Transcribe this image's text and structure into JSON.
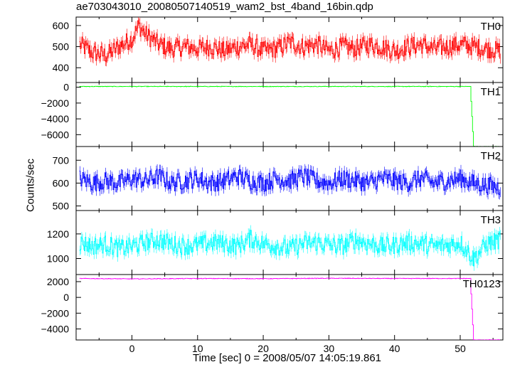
{
  "title": "ae703043010_20080507140519_wam2_bst_4band_16bin.qdp",
  "xlabel": "Time [sec] 0 = 2008/05/07 14:05:19.861",
  "ylabel": "Counts/sec",
  "chart_data": [
    {
      "type": "line",
      "name": "TH0",
      "color": "#ff0000",
      "xlim": [
        -8.5,
        56.5
      ],
      "ylim": [
        330,
        640
      ],
      "yticks": [
        400,
        500,
        600
      ],
      "ytick_labels": [
        "400",
        "500",
        "600"
      ],
      "x": [
        -8,
        -6,
        -4,
        -2,
        0,
        1,
        2,
        4,
        6,
        8,
        10,
        12,
        14,
        16,
        18,
        20,
        22,
        24,
        26,
        28,
        30,
        32,
        34,
        36,
        38,
        40,
        42,
        44,
        46,
        48,
        50,
        52,
        54,
        56
      ],
      "values": [
        510,
        470,
        460,
        500,
        540,
        600,
        560,
        510,
        490,
        500,
        490,
        500,
        480,
        500,
        510,
        480,
        490,
        520,
        500,
        510,
        480,
        500,
        490,
        510,
        500,
        480,
        500,
        510,
        490,
        500,
        510,
        500,
        490,
        480
      ]
    },
    {
      "type": "line",
      "name": "TH1",
      "color": "#00ff00",
      "xlim": [
        -8.5,
        56.5
      ],
      "ylim": [
        -7500,
        600
      ],
      "yticks": [
        -6000,
        -4000,
        -2000,
        0
      ],
      "ytick_labels": [
        "−6000",
        "−4000",
        "−2000",
        "0"
      ],
      "x": [
        -8,
        0,
        10,
        20,
        30,
        40,
        51,
        51.5,
        52,
        52.5
      ],
      "values": [
        100,
        100,
        100,
        100,
        100,
        100,
        100,
        100,
        -7500,
        -7500
      ]
    },
    {
      "type": "line",
      "name": "TH2",
      "color": "#0000ff",
      "xlim": [
        -8.5,
        56.5
      ],
      "ylim": [
        480,
        760
      ],
      "yticks": [
        500,
        600,
        700
      ],
      "ytick_labels": [
        "500",
        "600",
        "700"
      ],
      "x": [
        -8,
        -6,
        -4,
        -2,
        0,
        2,
        4,
        6,
        8,
        10,
        12,
        14,
        16,
        18,
        20,
        22,
        24,
        26,
        28,
        30,
        32,
        34,
        36,
        38,
        40,
        42,
        44,
        46,
        48,
        50,
        52,
        54,
        56
      ],
      "values": [
        620,
        600,
        610,
        600,
        620,
        610,
        630,
        600,
        610,
        620,
        600,
        610,
        630,
        610,
        600,
        620,
        610,
        630,
        610,
        600,
        620,
        610,
        600,
        620,
        610,
        600,
        620,
        600,
        610,
        620,
        600,
        590,
        580
      ]
    },
    {
      "type": "line",
      "name": "TH3",
      "color": "#00ffff",
      "xlim": [
        -8.5,
        56.5
      ],
      "ylim": [
        870,
        1390
      ],
      "yticks": [
        1000,
        1200
      ],
      "ytick_labels": [
        "1000",
        "1200"
      ],
      "x": [
        -8,
        -6,
        -4,
        -2,
        0,
        2,
        4,
        6,
        8,
        10,
        12,
        14,
        16,
        18,
        20,
        22,
        24,
        26,
        28,
        30,
        32,
        34,
        36,
        38,
        40,
        42,
        44,
        46,
        48,
        50,
        52,
        54,
        56
      ],
      "values": [
        1130,
        1100,
        1120,
        1080,
        1100,
        1130,
        1150,
        1120,
        1100,
        1110,
        1130,
        1120,
        1100,
        1160,
        1120,
        1100,
        1080,
        1120,
        1130,
        1110,
        1100,
        1150,
        1120,
        1100,
        1110,
        1130,
        1120,
        1100,
        1110,
        1130,
        1000,
        1120,
        1150
      ]
    },
    {
      "type": "line",
      "name": "TH0123",
      "color": "#ff00ff",
      "xlim": [
        -8.5,
        56.5
      ],
      "ylim": [
        -5400,
        2900
      ],
      "yticks": [
        -4000,
        -2000,
        0,
        2000
      ],
      "ytick_labels": [
        "−4000",
        "−2000",
        "0",
        "2000"
      ],
      "x": [
        -8,
        0,
        10,
        20,
        30,
        40,
        51,
        51.5,
        52,
        52.5
      ],
      "values": [
        2400,
        2350,
        2400,
        2380,
        2420,
        2400,
        2400,
        2400,
        -5400,
        -5400
      ]
    }
  ],
  "xticks": [
    0,
    10,
    20,
    30,
    40,
    50
  ],
  "xtick_labels": [
    "0",
    "10",
    "20",
    "30",
    "40",
    "50"
  ]
}
